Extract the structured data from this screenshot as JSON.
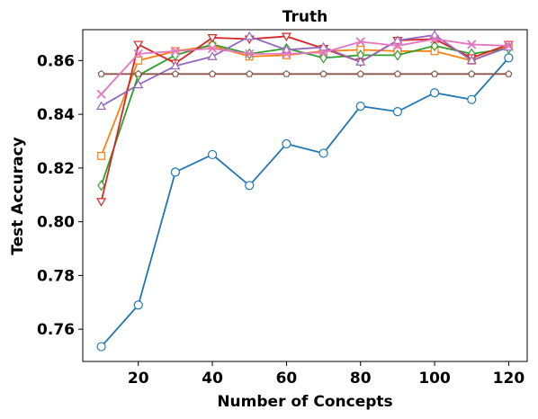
{
  "chart_data": {
    "type": "line",
    "title": "Truth",
    "xlabel": "Number of Concepts",
    "ylabel": "Test Accuracy",
    "xlim": [
      5,
      125
    ],
    "ylim": [
      0.748,
      0.8715
    ],
    "xticks": [
      20,
      40,
      60,
      80,
      100,
      120
    ],
    "yticks": [
      0.76,
      0.78,
      0.8,
      0.82,
      0.84,
      0.86
    ],
    "ytick_labels": [
      "0.76",
      "0.78",
      "0.80",
      "0.82",
      "0.84",
      "0.86"
    ],
    "grid": false,
    "legend": "none",
    "x": [
      10,
      20,
      30,
      40,
      50,
      60,
      70,
      80,
      90,
      100,
      110,
      120
    ],
    "series": [
      {
        "color": "#1f77b4",
        "marker": "circle",
        "values": [
          0.7535,
          0.769,
          0.8185,
          0.825,
          0.8135,
          0.829,
          0.8255,
          0.843,
          0.841,
          0.848,
          0.8455,
          0.861
        ]
      },
      {
        "color": "#ff7f0e",
        "marker": "square",
        "values": [
          0.8245,
          0.86,
          0.8635,
          0.8655,
          0.8615,
          0.862,
          0.8635,
          0.864,
          0.8635,
          0.8635,
          0.86,
          0.8655
        ]
      },
      {
        "color": "#2ca02c",
        "marker": "diamond",
        "values": [
          0.8135,
          0.8545,
          0.862,
          0.866,
          0.8625,
          0.8645,
          0.861,
          0.862,
          0.862,
          0.8655,
          0.8625,
          0.8645
        ]
      },
      {
        "color": "#d62728",
        "marker": "triangle-down",
        "values": [
          0.8075,
          0.866,
          0.859,
          0.8685,
          0.868,
          0.869,
          0.8645,
          0.8595,
          0.8675,
          0.868,
          0.861,
          0.866
        ]
      },
      {
        "color": "#9467bd",
        "marker": "triangle-up",
        "values": [
          0.843,
          0.851,
          0.858,
          0.8615,
          0.869,
          0.864,
          0.865,
          0.8595,
          0.8675,
          0.8695,
          0.86,
          0.865
        ]
      },
      {
        "color": "#8c564b",
        "marker": "pentagon",
        "values": [
          0.855,
          0.855,
          0.855,
          0.855,
          0.855,
          0.855,
          0.855,
          0.855,
          0.855,
          0.855,
          0.855,
          0.855
        ]
      },
      {
        "color": "#e377c2",
        "marker": "x",
        "values": [
          0.8475,
          0.8625,
          0.8635,
          0.8645,
          0.8625,
          0.8625,
          0.863,
          0.867,
          0.8655,
          0.868,
          0.866,
          0.8655
        ]
      }
    ]
  }
}
